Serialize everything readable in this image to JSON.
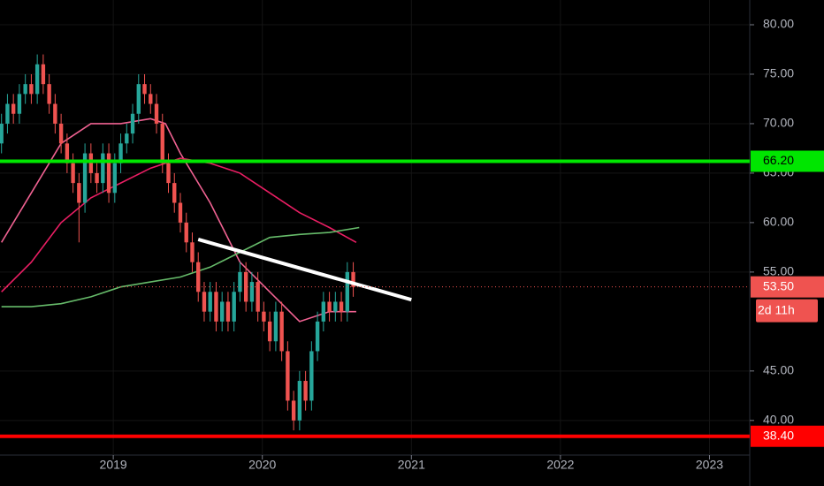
{
  "chart_data": {
    "type": "candlestick",
    "up_color": "#26a69a",
    "down_color": "#ef5350",
    "x": [
      2018.25,
      2018.29,
      2018.33,
      2018.37,
      2018.41,
      2018.45,
      2018.49,
      2018.53,
      2018.57,
      2018.61,
      2018.65,
      2018.69,
      2018.73,
      2018.77,
      2018.81,
      2018.85,
      2018.89,
      2018.93,
      2018.97,
      2019.01,
      2019.05,
      2019.09,
      2019.13,
      2019.17,
      2019.21,
      2019.25,
      2019.29,
      2019.33,
      2019.37,
      2019.41,
      2019.45,
      2019.49,
      2019.53,
      2019.57,
      2019.61,
      2019.65,
      2019.69,
      2019.73,
      2019.77,
      2019.81,
      2019.85,
      2019.89,
      2019.93,
      2019.97,
      2020.01,
      2020.05,
      2020.09,
      2020.13,
      2020.17,
      2020.21,
      2020.25,
      2020.29,
      2020.33,
      2020.37,
      2020.41,
      2020.45,
      2020.49,
      2020.53,
      2020.57,
      2020.61
    ],
    "open": [
      68,
      70,
      72,
      71,
      73,
      74,
      73,
      76,
      74,
      72,
      70,
      68,
      66,
      64,
      62,
      67,
      65,
      64,
      67,
      63,
      66,
      68,
      69,
      71,
      74,
      73,
      72,
      70,
      66,
      64,
      62,
      60,
      58,
      56,
      53,
      51,
      53,
      50,
      52,
      50,
      53,
      55,
      52,
      54,
      51,
      50,
      48,
      51,
      47,
      42,
      40,
      44,
      42,
      47,
      50,
      52,
      51,
      52,
      51,
      55
    ],
    "high": [
      71,
      73,
      73,
      74,
      75,
      75,
      77,
      77,
      75,
      73,
      71,
      69,
      67,
      65,
      68,
      68,
      66,
      68,
      68,
      67,
      69,
      70,
      72,
      75,
      75,
      74,
      73,
      71,
      67,
      65,
      63,
      61,
      59,
      57,
      54,
      54,
      54,
      53,
      53,
      54,
      56,
      56,
      55,
      55,
      52,
      51,
      52,
      52,
      48,
      43,
      45,
      45,
      48,
      51,
      53,
      53,
      53,
      53,
      56,
      56
    ],
    "low": [
      67,
      69,
      70,
      70,
      72,
      72,
      72,
      73,
      71,
      69,
      67,
      65,
      63,
      58,
      61,
      64,
      63,
      63,
      62,
      62,
      65,
      67,
      68,
      70,
      72,
      71,
      69,
      65,
      63,
      61,
      59,
      57,
      55,
      52,
      50,
      50,
      49,
      49,
      49,
      49,
      52,
      51,
      51,
      50,
      49,
      47,
      47,
      46,
      41,
      39,
      39,
      41,
      41,
      46,
      49,
      50,
      50,
      50,
      50,
      52.5
    ],
    "close": [
      70,
      72,
      71,
      73,
      74,
      73,
      76,
      74,
      72,
      70,
      68,
      66,
      64,
      62,
      67,
      65,
      64,
      67,
      63,
      66,
      68,
      69,
      71,
      74,
      73,
      72,
      70,
      66,
      64,
      62,
      60,
      58,
      56,
      53,
      51,
      53,
      50,
      52,
      50,
      53,
      55,
      52,
      54,
      51,
      50,
      48,
      51,
      47,
      42,
      40,
      44,
      42,
      47,
      50,
      52,
      51,
      52,
      51,
      55,
      53.5
    ],
    "moving_averages": [
      {
        "color": "#f06292",
        "x": [
          2018.25,
          2018.45,
          2018.65,
          2018.85,
          2019.05,
          2019.25,
          2019.35,
          2019.45,
          2019.65,
          2019.85,
          2020.05,
          2020.25,
          2020.45,
          2020.63
        ],
        "values": [
          58,
          63,
          68,
          70,
          70,
          70.5,
          70,
          67,
          62,
          56,
          53,
          50,
          51,
          51
        ]
      },
      {
        "color": "#e91e63",
        "x": [
          2018.25,
          2018.45,
          2018.65,
          2018.85,
          2019.05,
          2019.25,
          2019.45,
          2019.65,
          2019.85,
          2020.05,
          2020.25,
          2020.45,
          2020.63
        ],
        "values": [
          53,
          56,
          60,
          62.5,
          64,
          65.5,
          66.5,
          66,
          65,
          63,
          61,
          59.5,
          58
        ]
      },
      {
        "color": "#66bb6a",
        "x": [
          2018.25,
          2018.45,
          2018.65,
          2018.85,
          2019.05,
          2019.25,
          2019.45,
          2019.65,
          2019.85,
          2020.05,
          2020.25,
          2020.45,
          2020.65
        ],
        "values": [
          51.5,
          51.5,
          51.8,
          52.5,
          53.5,
          54,
          54.5,
          55.5,
          57,
          58.5,
          58.8,
          59,
          59.5
        ]
      }
    ],
    "trend_line": {
      "color": "#ffffff",
      "x": [
        2019.57,
        2021.0
      ],
      "values": [
        58.3,
        52.2
      ]
    },
    "levels": [
      {
        "value": 66.2,
        "label": "66.20",
        "color": "#00e600"
      },
      {
        "value": 38.4,
        "label": "38.40",
        "color": "#ff0000"
      }
    ],
    "last_price": {
      "value": 53.5,
      "label": "53.50",
      "color": "#ef5350"
    },
    "countdown": "2d 11h",
    "xlim": [
      2018.24,
      2023.27
    ],
    "ylim": [
      82.5,
      36.5
    ],
    "xticks": [
      2019,
      2020,
      2021,
      2022,
      2023
    ],
    "yticks": [
      {
        "value": 80,
        "label": "80.00"
      },
      {
        "value": 75,
        "label": "75.00"
      },
      {
        "value": 70,
        "label": "70.00"
      },
      {
        "value": 65,
        "label": "65.00"
      },
      {
        "value": 60,
        "label": "60.00"
      },
      {
        "value": 55,
        "label": "55.00"
      },
      {
        "value": 45,
        "label": "45.00"
      },
      {
        "value": 40,
        "label": "40.00"
      }
    ],
    "grid": true
  }
}
